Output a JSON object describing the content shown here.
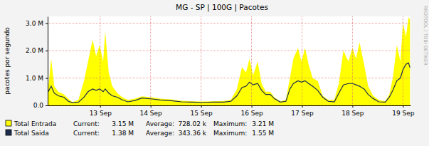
{
  "chart_data": {
    "type": "area",
    "title": "MG - SP | 100G | Pacotes",
    "y_label": "pacotes por segundo",
    "annotations": [
      "RRDTOOL / TOBI OETIKER"
    ],
    "x": [
      11.97,
      12.03,
      12.09,
      12.17,
      12.28,
      12.37,
      12.45,
      12.57,
      12.68,
      12.76,
      12.85,
      12.92,
      12.99,
      13.06,
      13.1,
      13.17,
      13.24,
      13.34,
      13.44,
      13.55,
      13.69,
      13.83,
      14.0,
      14.19,
      14.4,
      14.61,
      14.82,
      15.03,
      15.24,
      15.45,
      15.59,
      15.71,
      15.81,
      15.89,
      15.96,
      16.03,
      16.12,
      16.2,
      16.28,
      16.37,
      16.45,
      16.57,
      16.68,
      16.76,
      16.83,
      16.92,
      16.99,
      17.06,
      17.13,
      17.21,
      17.31,
      17.41,
      17.52,
      17.64,
      17.73,
      17.82,
      17.92,
      18.0,
      18.07,
      18.14,
      18.23,
      18.31,
      18.41,
      18.52,
      18.65,
      18.73,
      18.8,
      18.88,
      18.95,
      19.0,
      19.06,
      19.11,
      19.14
    ],
    "xlim": [
      11.96,
      19.15
    ],
    "xticks": [
      {
        "value": 13,
        "label": "13 Sep"
      },
      {
        "value": 14,
        "label": "14 Sep"
      },
      {
        "value": 15,
        "label": "15 Sep"
      },
      {
        "value": 16,
        "label": "16 Sep"
      },
      {
        "value": 17,
        "label": "17 Sep"
      },
      {
        "value": 18,
        "label": "18 Sep"
      },
      {
        "value": 19,
        "label": "19 Sep"
      }
    ],
    "ylim": [
      0,
      3250000
    ],
    "yticks": [
      {
        "value": 0,
        "label": "0.0"
      },
      {
        "value": 1000000,
        "label": "1.0 M"
      },
      {
        "value": 2000000,
        "label": "2.0 M"
      },
      {
        "value": 3000000,
        "label": "3.0 M"
      }
    ],
    "grid": true,
    "legend": "bottom",
    "stat_names": [
      "Current:",
      "Average:",
      "Maximum:"
    ],
    "series": [
      {
        "name": "Total Entrada",
        "type": "area",
        "color": "#ffff00",
        "values": [
          600000,
          1700000,
          700000,
          500000,
          400000,
          250000,
          120000,
          200000,
          900000,
          1600000,
          2400000,
          1800000,
          2200000,
          1600000,
          2700000,
          1200000,
          700000,
          450000,
          300000,
          200000,
          250000,
          330000,
          300000,
          250000,
          220000,
          170000,
          150000,
          140000,
          150000,
          160000,
          200000,
          600000,
          1400000,
          1200000,
          1700000,
          1100000,
          1600000,
          800000,
          500000,
          500000,
          300000,
          150000,
          200000,
          1000000,
          1700000,
          2100000,
          1600000,
          2100000,
          1500000,
          1000000,
          900000,
          350000,
          200000,
          200000,
          800000,
          2000000,
          1600000,
          2100000,
          1700000,
          2300000,
          1500000,
          700000,
          350000,
          200000,
          150000,
          400000,
          1000000,
          2200000,
          1600000,
          3000000,
          2500000,
          3210000,
          3150000
        ],
        "current": {
          "value": 3150000,
          "label": "3.15 M"
        },
        "average": {
          "value": 728020,
          "label": "728.02 k"
        },
        "maximum": {
          "value": 3210000,
          "label": "3.21 M"
        }
      },
      {
        "name": "Total Saida",
        "type": "line",
        "color": "#1c2d4f",
        "values": [
          500000,
          700000,
          450000,
          350000,
          300000,
          150000,
          100000,
          120000,
          300000,
          500000,
          600000,
          550000,
          600000,
          500000,
          600000,
          450000,
          350000,
          300000,
          200000,
          130000,
          180000,
          270000,
          240000,
          200000,
          170000,
          130000,
          120000,
          110000,
          120000,
          120000,
          150000,
          350000,
          650000,
          700000,
          850000,
          750000,
          800000,
          550000,
          400000,
          400000,
          250000,
          120000,
          150000,
          600000,
          800000,
          900000,
          850000,
          900000,
          800000,
          700000,
          550000,
          300000,
          150000,
          130000,
          450000,
          750000,
          800000,
          800000,
          750000,
          700000,
          600000,
          400000,
          250000,
          130000,
          120000,
          300000,
          550000,
          900000,
          1000000,
          1300000,
          1500000,
          1550000,
          1380000
        ],
        "current": {
          "value": 1380000,
          "label": "1.38 M"
        },
        "average": {
          "value": 343360,
          "label": "343.36 k"
        },
        "maximum": {
          "value": 1550000,
          "label": "1.55 M"
        }
      }
    ]
  }
}
